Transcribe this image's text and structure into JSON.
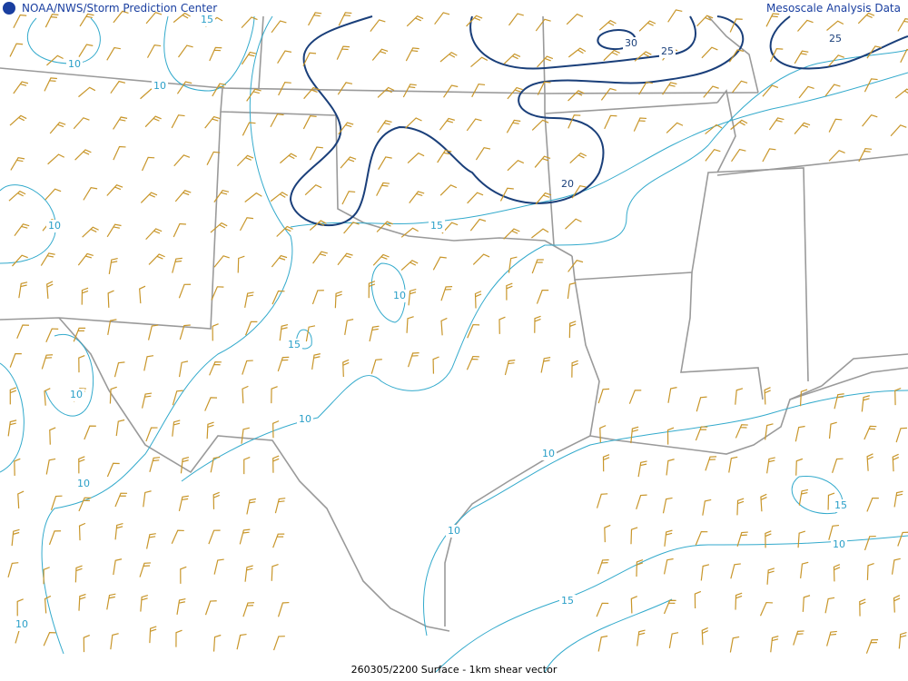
{
  "header": {
    "left": "NOAA/NWS/Storm Prediction Center",
    "right": "Mesoscale Analysis Data"
  },
  "footer": "260305/2200 Surface - 1km shear vector",
  "contour_labels": [
    15,
    10,
    10,
    10,
    10,
    15,
    10,
    10,
    10,
    15,
    20,
    30,
    25,
    25,
    10,
    15,
    10,
    15,
    10,
    10
  ]
}
